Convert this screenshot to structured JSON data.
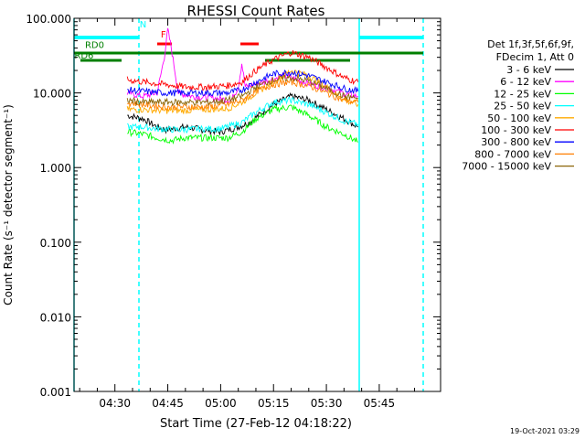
{
  "chart_data": {
    "type": "line",
    "title": "RHESSI Count Rates",
    "xlabel": "Start Time (27-Feb-12 04:18:22)",
    "ylabel": "Count Rate (s⁻¹ detector segment⁻¹)",
    "yscale": "log",
    "ylim": [
      0.001,
      100
    ],
    "xlim_minutes_of_day": [
      258.4,
      362.4
    ],
    "grid": false,
    "legend_position": "top-right",
    "x_ticks": [
      {
        "t": 270,
        "label": "04:30"
      },
      {
        "t": 285,
        "label": "04:45"
      },
      {
        "t": 300,
        "label": "05:00"
      },
      {
        "t": 315,
        "label": "05:15"
      },
      {
        "t": 330,
        "label": "05:30"
      },
      {
        "t": 345,
        "label": "05:45"
      }
    ],
    "y_ticks": [
      {
        "v": 100,
        "label": "100.000"
      },
      {
        "v": 10,
        "label": "10.000"
      },
      {
        "v": 1,
        "label": "1.000"
      },
      {
        "v": 0.1,
        "label": "0.100"
      },
      {
        "v": 0.01,
        "label": "0.010"
      },
      {
        "v": 0.001,
        "label": "0.001"
      }
    ],
    "legend_header": [
      "Det 1f,3f,5f,6f,9f,",
      "FDecim 1, Att 0"
    ],
    "series": [
      {
        "name": "3 - 6 keV",
        "color": "#000000",
        "points": [
          [
            273.5,
            5
          ],
          [
            278,
            4.5
          ],
          [
            282,
            3.5
          ],
          [
            284.5,
            3.2
          ],
          [
            290,
            3.5
          ],
          [
            295,
            3.2
          ],
          [
            300,
            3
          ],
          [
            305,
            3.5
          ],
          [
            308,
            4
          ],
          [
            315,
            7
          ],
          [
            320,
            9
          ],
          [
            325,
            8
          ],
          [
            330,
            6
          ],
          [
            335,
            4.5
          ],
          [
            339,
            3.5
          ]
        ]
      },
      {
        "name": "6 - 12 keV",
        "color": "#ff00ff",
        "points": [
          [
            273.5,
            10
          ],
          [
            278,
            9
          ],
          [
            282,
            10
          ],
          [
            284,
            30
          ],
          [
            285,
            70
          ],
          [
            286,
            40
          ],
          [
            288,
            10
          ],
          [
            292,
            9
          ],
          [
            298,
            8.5
          ],
          [
            303,
            8
          ],
          [
            305,
            12
          ],
          [
            306,
            25
          ],
          [
            307,
            12
          ],
          [
            312,
            14
          ],
          [
            318,
            17
          ],
          [
            322,
            15
          ],
          [
            326,
            13
          ],
          [
            332,
            11
          ],
          [
            336,
            9.5
          ],
          [
            339,
            9
          ]
        ]
      },
      {
        "name": "12 - 25 keV",
        "color": "#00ff00",
        "points": [
          [
            273.5,
            3
          ],
          [
            278,
            2.8
          ],
          [
            282,
            2.5
          ],
          [
            286,
            2.3
          ],
          [
            290,
            2.5
          ],
          [
            296,
            2.5
          ],
          [
            302,
            2.5
          ],
          [
            306,
            3
          ],
          [
            310,
            4.5
          ],
          [
            315,
            6
          ],
          [
            320,
            6.5
          ],
          [
            325,
            5
          ],
          [
            330,
            3.5
          ],
          [
            335,
            2.8
          ],
          [
            339,
            2.2
          ]
        ]
      },
      {
        "name": "25 - 50 keV",
        "color": "#00ffff",
        "points": [
          [
            273.5,
            3.5
          ],
          [
            278,
            3.5
          ],
          [
            282,
            3.3
          ],
          [
            288,
            3.2
          ],
          [
            294,
            3.3
          ],
          [
            300,
            3.3
          ],
          [
            306,
            4
          ],
          [
            310,
            5.5
          ],
          [
            315,
            7.5
          ],
          [
            320,
            8
          ],
          [
            325,
            7
          ],
          [
            330,
            5.5
          ],
          [
            335,
            4.2
          ],
          [
            339,
            3.8
          ]
        ]
      },
      {
        "name": "50 - 100 keV",
        "color": "#ffaa00",
        "points": [
          [
            273.5,
            6
          ],
          [
            278,
            6
          ],
          [
            284,
            5.8
          ],
          [
            290,
            5.8
          ],
          [
            296,
            6
          ],
          [
            302,
            6.2
          ],
          [
            306,
            7.5
          ],
          [
            310,
            10
          ],
          [
            315,
            14
          ],
          [
            320,
            20
          ],
          [
            325,
            17
          ],
          [
            330,
            12
          ],
          [
            335,
            8
          ],
          [
            339,
            7
          ]
        ]
      },
      {
        "name": "100 - 300 keV",
        "color": "#ff0000",
        "points": [
          [
            273.5,
            15
          ],
          [
            278,
            14
          ],
          [
            284,
            13
          ],
          [
            290,
            12
          ],
          [
            296,
            12
          ],
          [
            302,
            12.5
          ],
          [
            306,
            14
          ],
          [
            310,
            20
          ],
          [
            315,
            28
          ],
          [
            320,
            35
          ],
          [
            325,
            30
          ],
          [
            330,
            22
          ],
          [
            335,
            16
          ],
          [
            339,
            14
          ]
        ]
      },
      {
        "name": "300 - 800 keV",
        "color": "#0000ff",
        "points": [
          [
            273.5,
            11
          ],
          [
            278,
            10.5
          ],
          [
            284,
            10
          ],
          [
            290,
            10
          ],
          [
            296,
            10
          ],
          [
            302,
            10
          ],
          [
            306,
            11
          ],
          [
            310,
            14
          ],
          [
            315,
            18
          ],
          [
            320,
            19
          ],
          [
            325,
            17
          ],
          [
            330,
            14
          ],
          [
            335,
            11.5
          ],
          [
            339,
            10.5
          ]
        ]
      },
      {
        "name": "800 - 7000 keV",
        "color": "#ff7f00",
        "points": [
          [
            273.5,
            7.5
          ],
          [
            278,
            7
          ],
          [
            284,
            6.5
          ],
          [
            290,
            6.5
          ],
          [
            296,
            6.5
          ],
          [
            302,
            7
          ],
          [
            306,
            8
          ],
          [
            310,
            10.5
          ],
          [
            315,
            13
          ],
          [
            320,
            14
          ],
          [
            325,
            12.5
          ],
          [
            330,
            10
          ],
          [
            335,
            8
          ],
          [
            339,
            7.5
          ]
        ]
      },
      {
        "name": "7000 - 15000 keV",
        "color": "#8b6508",
        "points": [
          [
            273.5,
            8
          ],
          [
            278,
            7.5
          ],
          [
            284,
            7.5
          ],
          [
            290,
            7.5
          ],
          [
            296,
            7.5
          ],
          [
            302,
            8
          ],
          [
            306,
            9
          ],
          [
            310,
            12
          ],
          [
            315,
            15
          ],
          [
            320,
            16
          ],
          [
            325,
            14.5
          ],
          [
            330,
            11.5
          ],
          [
            335,
            9
          ],
          [
            339,
            8.5
          ]
        ]
      }
    ],
    "annotations": [
      {
        "label": "N",
        "color": "#00ffff",
        "t": 277,
        "v": 75
      },
      {
        "label": "F",
        "color": "#ff0000",
        "t": 283,
        "v": 55
      },
      {
        "label": "RD0",
        "color": "#007f00",
        "t": 261.5,
        "v": 40
      },
      {
        "label": "RD6",
        "color": "#007f00",
        "t": 258.5,
        "v": 29
      }
    ],
    "footer_timestamp": "19-Oct-2021 03:29"
  }
}
